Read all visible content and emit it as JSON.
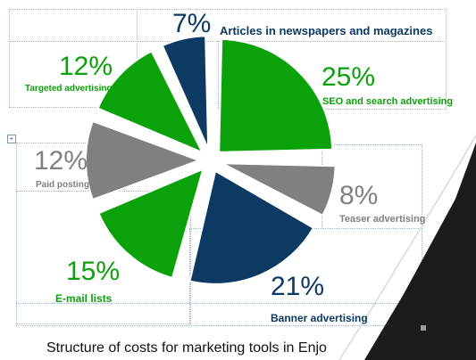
{
  "chart_data": {
    "type": "pie",
    "title": "",
    "slices": [
      {
        "label": "SEO and search advertising",
        "value": 25,
        "value_label": "25%",
        "color": "#0aa10a"
      },
      {
        "label": "Teaser advertising",
        "value": 8,
        "value_label": "8%",
        "color": "#808080"
      },
      {
        "label": "Banner advertising",
        "value": 21,
        "value_label": "21%",
        "color": "#0c3a63"
      },
      {
        "label": "E-mail lists",
        "value": 15,
        "value_label": "15%",
        "color": "#0aa10a"
      },
      {
        "label": "Paid posting",
        "value": 12,
        "value_label": "12%",
        "color": "#808080"
      },
      {
        "label": "Targeted advertising",
        "value": 12,
        "value_label": "12%",
        "color": "#0aa10a"
      },
      {
        "label": "Articles in newspapers and magazines",
        "value": 7,
        "value_label": "7%",
        "color": "#0c3a63"
      }
    ]
  },
  "caption": "Structure of costs for marketing tools in Enjo",
  "colors": {
    "green": "#0aa10a",
    "navy": "#0c3a63",
    "gray": "#808080",
    "dark_deco": "#1c1c1c"
  },
  "icons": {
    "move_handle": "move-arrows-icon",
    "resize_handle": "resize-corner-icon"
  }
}
